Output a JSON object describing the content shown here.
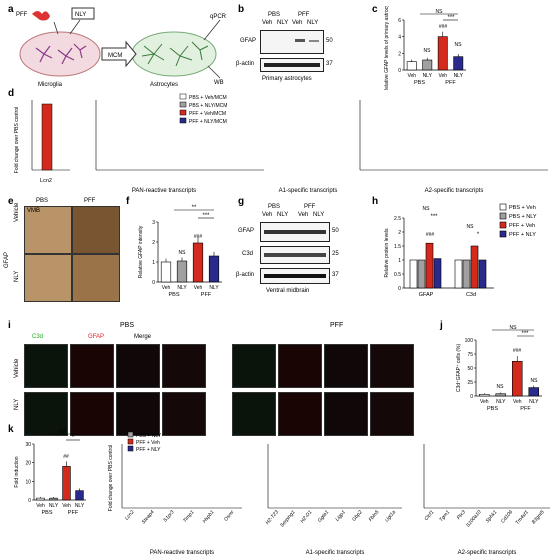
{
  "panels": {
    "a": {
      "letter": "a",
      "labels": {
        "pff": "PFF",
        "nly": "NLY",
        "mcm": "MCM",
        "microglia": "Microglia",
        "astrocytes": "Astrocytes",
        "qpcr": "qPCR",
        "wb": "WB"
      }
    },
    "b": {
      "letter": "b",
      "groups": [
        "PBS",
        "PFF"
      ],
      "lanes": [
        "Veh",
        "NLY",
        "Veh",
        "NLY"
      ],
      "rows": [
        {
          "name": "GFAP",
          "kda": "50"
        },
        {
          "name": "β-actin",
          "kda": "37"
        }
      ],
      "caption": "Primary astrocytes"
    },
    "c": {
      "letter": "c",
      "ylabel": "Relative GFAP levels of primary astrocytes",
      "groups": [
        "PBS",
        "PFF"
      ],
      "categories": [
        "Veh",
        "NLY",
        "Veh",
        "NLY"
      ],
      "sig": {
        "ns_top": "NS",
        "stars": "***",
        "ns1": "NS",
        "hash": "###",
        "ns2": "NS"
      }
    },
    "d": {
      "letter": "d",
      "ylabel": "Fold change over PBS control",
      "legend": [
        "PBS + Veh/MCM",
        "PBS + NLY/MCM",
        "PFF + Veh/MCM",
        "PFF + NLY/MCM"
      ],
      "pan_caption": "PAN-reactive transcripts",
      "a1_caption": "A1-specific transcripts",
      "a2_caption": "A2-specific transcripts",
      "lcn2": "Lcn2"
    },
    "e": {
      "letter": "e",
      "cols": [
        "PBS",
        "PFF"
      ],
      "rows": [
        "Vehicle",
        "NLY"
      ],
      "side": "GFAP",
      "vmb": "VMB"
    },
    "f": {
      "letter": "f",
      "ylabel": "Relative GFAP intensity",
      "groups": [
        "PBS",
        "PFF"
      ],
      "categories": [
        "Veh",
        "NLY",
        "Veh",
        "NLY"
      ],
      "sig": {
        "top": "**",
        "mid": "***",
        "ns": "NS",
        "hash": "###"
      }
    },
    "g": {
      "letter": "g",
      "groups": [
        "PBS",
        "PFF"
      ],
      "lanes": [
        "Veh",
        "NLY",
        "Veh",
        "NLY"
      ],
      "rows": [
        {
          "name": "GFAP",
          "kda": "50"
        },
        {
          "name": "C3d",
          "kda": "25"
        },
        {
          "name": "β-actin",
          "kda": "37"
        }
      ],
      "caption": "Ventral midbrain"
    },
    "h": {
      "letter": "h",
      "ylabel": "Relative protein levels",
      "legend": [
        "PBS + Veh",
        "PBS + NLY",
        "PFF + Veh",
        "PFF + NLY"
      ],
      "xcats": [
        "GFAP",
        "C3d"
      ],
      "sig": {
        "ns": "NS",
        "stars": "***",
        "hash": "###",
        "ns2": "NS",
        "star": "*"
      }
    },
    "i": {
      "letter": "i",
      "groups": [
        "PBS",
        "PFF"
      ],
      "channels": [
        "C3d",
        "GFAP",
        "Merge"
      ],
      "rows": [
        "Vehicle",
        "NLY"
      ]
    },
    "j": {
      "letter": "j",
      "ylabel": "C3d⁺GFAP⁺ cells (%)",
      "groups": [
        "PBS",
        "PFF"
      ],
      "categories": [
        "Veh",
        "NLY",
        "Veh",
        "NLY"
      ],
      "sig": {
        "ns": "NS",
        "stars": "***",
        "hash": "###",
        "ns1": "NS",
        "ns2": "NS"
      }
    },
    "k": {
      "letter": "k",
      "ylabel": "Fold induction",
      "groups": [
        "PBS",
        "PFF"
      ],
      "categories": [
        "Veh",
        "NLY",
        "Veh",
        "NLY"
      ],
      "sig": {
        "ns": "NS",
        "star": "*",
        "hash": "##"
      }
    },
    "l": {
      "letter": "l",
      "ylabel": "Fold change over PBS control",
      "legend": [
        "PBS + NLY",
        "PFF + Veh",
        "PFF + NLY"
      ],
      "pan_caption": "PAN-reactive transcripts",
      "a1_caption": "A1-specific transcripts",
      "a2_caption": "A2-specific transcripts",
      "pan_genes": [
        "Lcn2",
        "Steap4",
        "S1pr3",
        "Timp1",
        "Hspb1",
        "Osmr"
      ],
      "a1_genes": [
        "H2-T23",
        "Serping1",
        "H2-D1",
        "Ggta1",
        "Ligp1",
        "Gbp2",
        "Fbln5",
        "Ugt1a"
      ],
      "a2_genes": [
        "Clcf1",
        "Tgm1",
        "Ptx3",
        "S100a10",
        "Sphk1",
        "Cd109",
        "Tm4sf1",
        "B3gnt5"
      ]
    }
  },
  "colors": {
    "pbs_veh": "#ffffff",
    "pbs_nly": "#a0a0a0",
    "pff_veh": "#d42a1e",
    "pff_nly": "#2a2a8c"
  },
  "chart_data": [
    {
      "type": "bar",
      "panel": "c",
      "categories": [
        "PBS Veh",
        "PBS NLY",
        "PFF Veh",
        "PFF NLY"
      ],
      "values": [
        1.0,
        1.2,
        4.0,
        1.6
      ],
      "ylim": [
        0,
        6
      ],
      "yticks": [
        0,
        2,
        4,
        6
      ]
    },
    {
      "type": "bar",
      "panel": "f",
      "categories": [
        "PBS Veh",
        "PBS NLY",
        "PFF Veh",
        "PFF NLY"
      ],
      "values": [
        1.0,
        1.05,
        1.95,
        1.3
      ],
      "ylim": [
        0,
        3
      ],
      "yticks": [
        0,
        1,
        2,
        3
      ]
    },
    {
      "type": "bar",
      "panel": "h",
      "categories": [
        "GFAP",
        "C3d"
      ],
      "series": [
        {
          "name": "PBS + Veh",
          "values": [
            1.0,
            1.0
          ]
        },
        {
          "name": "PBS + NLY",
          "values": [
            1.0,
            1.0
          ]
        },
        {
          "name": "PFF + Veh",
          "values": [
            1.6,
            1.5
          ]
        },
        {
          "name": "PFF + NLY",
          "values": [
            1.05,
            1.0
          ]
        }
      ],
      "ylim": [
        0,
        2.5
      ],
      "yticks": [
        0,
        0.5,
        1.0,
        1.5,
        2.0,
        2.5
      ]
    },
    {
      "type": "bar",
      "panel": "j",
      "categories": [
        "PBS Veh",
        "PBS NLY",
        "PFF Veh",
        "PFF NLY"
      ],
      "values": [
        3,
        4,
        62,
        15
      ],
      "ylim": [
        0,
        100
      ],
      "yticks": [
        0,
        25,
        50,
        75,
        100
      ]
    },
    {
      "type": "bar",
      "panel": "k",
      "categories": [
        "PBS Veh",
        "PBS NLY",
        "PFF Veh",
        "PFF NLY"
      ],
      "values": [
        1,
        1,
        18,
        5
      ],
      "ylim": [
        0,
        30
      ],
      "yticks": [
        0,
        10,
        20,
        30
      ]
    }
  ]
}
